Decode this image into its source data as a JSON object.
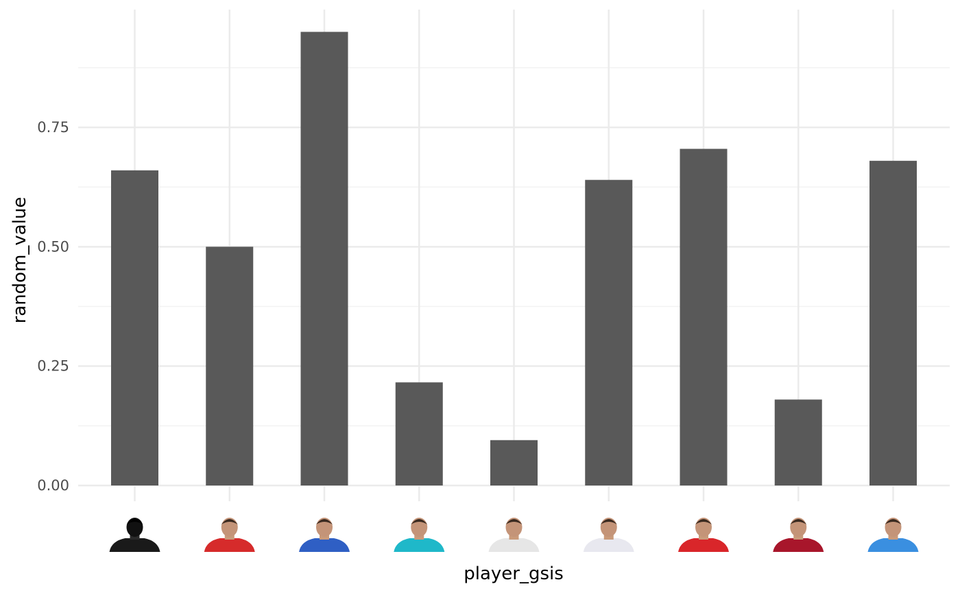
{
  "chart_data": {
    "type": "bar",
    "xlabel": "player_gsis",
    "ylabel": "random_value",
    "ylim": [
      0,
      0.95
    ],
    "y_ticks": [
      0.0,
      0.25,
      0.5,
      0.75
    ],
    "y_tick_labels": [
      "0.00",
      "0.25",
      "0.50",
      "0.75"
    ],
    "grid": true,
    "bar_color": "#595959",
    "x_tick_marks": "player headshot images",
    "values": [
      0.66,
      0.5,
      0.95,
      0.216,
      0.095,
      0.64,
      0.705,
      0.18,
      0.68
    ],
    "headshot_colors": [
      "#1a1a1a",
      "#d62b2b",
      "#2f5fc4",
      "#1fb8c9",
      "#e6e6e6",
      "#e8e8ef",
      "#d9262a",
      "#a8162b",
      "#3a8fe0"
    ]
  }
}
